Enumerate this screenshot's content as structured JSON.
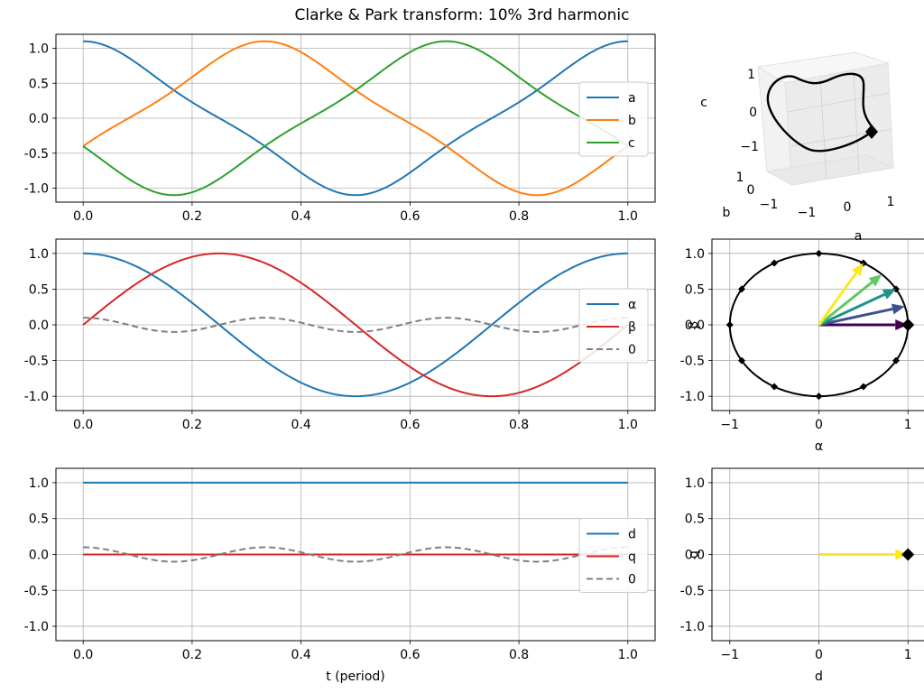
{
  "title": "Clarke & Park transform: 10% 3rd harmonic",
  "colors": {
    "a": "#1f77b4",
    "b": "#ff7f0e",
    "c": "#2ca02c",
    "alpha": "#1f77b4",
    "beta": "#d62728",
    "zero": "#7f7f7f",
    "d": "#1f77b4",
    "q": "#d62728",
    "grid": "#b0b0b0",
    "viridis": [
      "#440154",
      "#3b528b",
      "#21918c",
      "#5ec962",
      "#fde725"
    ]
  },
  "chart_data": [
    {
      "id": "abc",
      "type": "line",
      "function": "a(t)=cos(2πt)+0.1·cos(6πt); b,c shifted by -1/3, -2/3 period",
      "xlim": [
        -0.05,
        1.05
      ],
      "ylim": [
        -1.2,
        1.2
      ],
      "xticks": [
        "0.0",
        "0.2",
        "0.4",
        "0.6",
        "0.8",
        "1.0"
      ],
      "yticks": [
        "1.0",
        "0.5",
        "0.0",
        "-0.5",
        "-1.0"
      ],
      "xlabel": "",
      "ylabel": "",
      "legend_position": "center-right",
      "series": [
        {
          "name": "a"
        },
        {
          "name": "b"
        },
        {
          "name": "c"
        }
      ]
    },
    {
      "id": "alphabeta0",
      "type": "line",
      "function": "α=cos(2πt), β=sin(2πt), 0=0.1·cos(6πt)",
      "xlim": [
        -0.05,
        1.05
      ],
      "ylim": [
        -1.2,
        1.2
      ],
      "xticks": [
        "0.0",
        "0.2",
        "0.4",
        "0.6",
        "0.8",
        "1.0"
      ],
      "yticks": [
        "1.0",
        "0.5",
        "0.0",
        "-0.5",
        "-1.0"
      ],
      "xlabel": "",
      "ylabel": "",
      "legend_position": "center-right",
      "series": [
        {
          "name": "α"
        },
        {
          "name": "β"
        },
        {
          "name": "0",
          "dashed": true
        }
      ]
    },
    {
      "id": "dq0",
      "type": "line",
      "function": "d=1, q=0, 0=0.1·cos(6πt)",
      "xlim": [
        -0.05,
        1.05
      ],
      "ylim": [
        -1.2,
        1.2
      ],
      "xticks": [
        "0.0",
        "0.2",
        "0.4",
        "0.6",
        "0.8",
        "1.0"
      ],
      "yticks": [
        "1.0",
        "0.5",
        "0.0",
        "-0.5",
        "-1.0"
      ],
      "xlabel": "t (period)",
      "ylabel": "",
      "legend_position": "center-right",
      "series": [
        {
          "name": "d"
        },
        {
          "name": "q"
        },
        {
          "name": "0",
          "dashed": true
        }
      ]
    },
    {
      "id": "abc3d",
      "type": "line3d",
      "xlabel": "a",
      "ylabel": "b",
      "zlabel": "c",
      "xticks": [
        "−1",
        "0",
        "1"
      ],
      "yticks": [
        "−1",
        "0",
        "1"
      ],
      "zticks": [
        "1",
        "0",
        "−1"
      ]
    },
    {
      "id": "alphabeta-plane",
      "type": "scatter",
      "xlabel": "α",
      "ylabel": "β",
      "xlim": [
        -1.2,
        1.2
      ],
      "ylim": [
        -1.2,
        1.2
      ],
      "xticks": [
        "−1",
        "0",
        "1"
      ],
      "yticks": [
        "1.0",
        "0.5",
        "0.0",
        "-0.5",
        "-1.0"
      ],
      "circle_radius": 1.0,
      "markers_angles_deg": [
        0,
        30,
        60,
        90,
        120,
        150,
        180,
        210,
        240,
        270,
        300,
        330
      ],
      "highlight_point": [
        1,
        0
      ],
      "arrow_angles_deg": [
        0,
        15,
        30,
        45,
        60
      ]
    },
    {
      "id": "dq-plane",
      "type": "scatter",
      "xlabel": "d",
      "ylabel": "q",
      "xlim": [
        -1.2,
        1.2
      ],
      "ylim": [
        -1.2,
        1.2
      ],
      "xticks": [
        "−1",
        "0",
        "1"
      ],
      "yticks": [
        "1.0",
        "0.5",
        "0.0",
        "-0.5",
        "-1.0"
      ],
      "highlight_point": [
        1,
        0
      ],
      "arrow_end": [
        1,
        0
      ]
    }
  ]
}
